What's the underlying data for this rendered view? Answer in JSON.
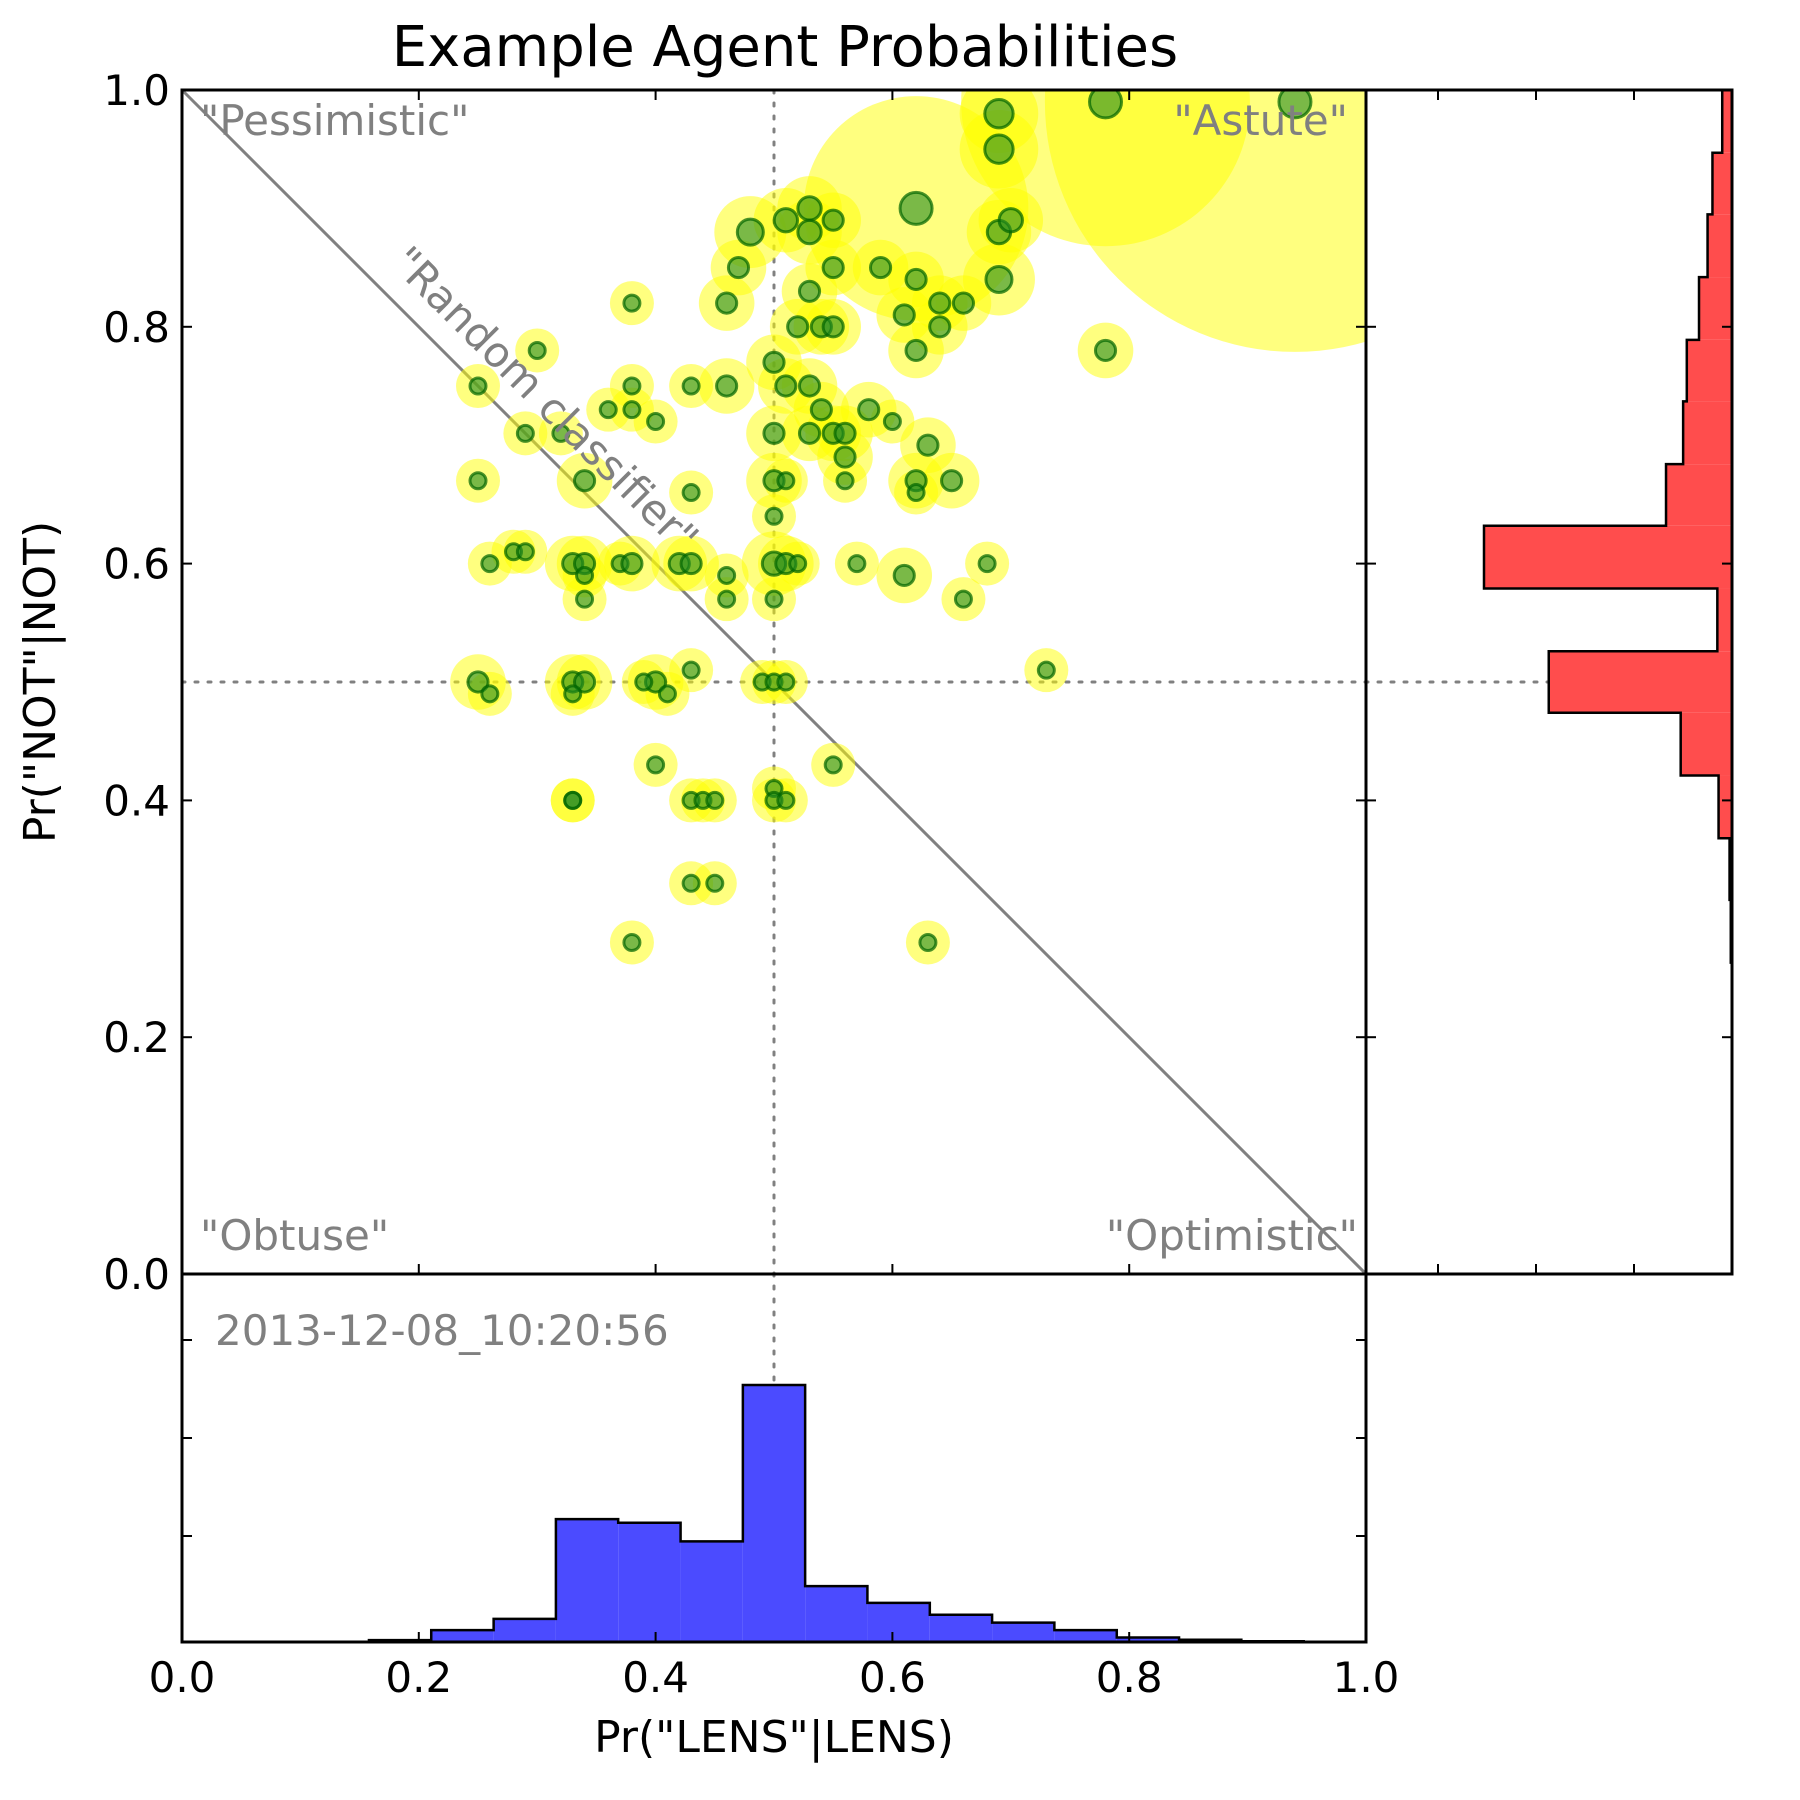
{
  "chart_data": {
    "type": "scatter",
    "title": "Example Agent Probabilities",
    "xlabel": "Pr(\"LENS\"|LENS)",
    "ylabel": "Pr(\"NOT\"|NOT)",
    "xlim": [
      0.0,
      1.0
    ],
    "ylim": [
      0.0,
      1.0
    ],
    "xticks": [
      "0.0",
      "0.2",
      "0.4",
      "0.6",
      "0.8",
      "1.0"
    ],
    "yticks": [
      "0.0",
      "0.2",
      "0.4",
      "0.6",
      "0.8",
      "1.0"
    ],
    "reference_lines": {
      "x": 0.5,
      "y": 0.5,
      "diagonal": [
        [
          0,
          1
        ],
        [
          1,
          0
        ]
      ]
    },
    "annotations": {
      "top_left": "\"Pessimistic\"",
      "top_right": "\"Astute\"",
      "bottom_left": "\"Obtuse\"",
      "bottom_right": "\"Optimistic\"",
      "diagonal": "\"Random classifier\"",
      "timestamp": "2013-12-08_10:20:56"
    },
    "colors": {
      "halo": "#ffff00",
      "point": "#228b22",
      "point_edge": "#006400",
      "x_hist": "#4b4bff",
      "y_hist": "#ff4d4d",
      "guide": "#808080"
    },
    "points": [
      {
        "x": 0.94,
        "y": 0.99,
        "n": 28
      },
      {
        "x": 0.78,
        "y": 0.99,
        "n": 14
      },
      {
        "x": 0.62,
        "y": 0.9,
        "n": 10
      },
      {
        "x": 0.69,
        "y": 0.98,
        "n": 5
      },
      {
        "x": 0.69,
        "y": 0.95,
        "n": 5
      },
      {
        "x": 0.69,
        "y": 0.88,
        "n": 3
      },
      {
        "x": 0.7,
        "y": 0.89,
        "n": 3
      },
      {
        "x": 0.69,
        "y": 0.84,
        "n": 4
      },
      {
        "x": 0.78,
        "y": 0.78,
        "n": 2
      },
      {
        "x": 0.53,
        "y": 0.9,
        "n": 3
      },
      {
        "x": 0.51,
        "y": 0.89,
        "n": 3
      },
      {
        "x": 0.53,
        "y": 0.88,
        "n": 3
      },
      {
        "x": 0.55,
        "y": 0.89,
        "n": 2
      },
      {
        "x": 0.48,
        "y": 0.88,
        "n": 4
      },
      {
        "x": 0.62,
        "y": 0.84,
        "n": 2
      },
      {
        "x": 0.59,
        "y": 0.85,
        "n": 2
      },
      {
        "x": 0.55,
        "y": 0.85,
        "n": 2
      },
      {
        "x": 0.53,
        "y": 0.83,
        "n": 2
      },
      {
        "x": 0.47,
        "y": 0.85,
        "n": 2
      },
      {
        "x": 0.46,
        "y": 0.82,
        "n": 2
      },
      {
        "x": 0.64,
        "y": 0.82,
        "n": 2
      },
      {
        "x": 0.66,
        "y": 0.82,
        "n": 2
      },
      {
        "x": 0.61,
        "y": 0.81,
        "n": 2
      },
      {
        "x": 0.64,
        "y": 0.8,
        "n": 2
      },
      {
        "x": 0.62,
        "y": 0.78,
        "n": 2
      },
      {
        "x": 0.52,
        "y": 0.8,
        "n": 2
      },
      {
        "x": 0.54,
        "y": 0.8,
        "n": 2
      },
      {
        "x": 0.55,
        "y": 0.8,
        "n": 2
      },
      {
        "x": 0.5,
        "y": 0.77,
        "n": 2
      },
      {
        "x": 0.51,
        "y": 0.75,
        "n": 2
      },
      {
        "x": 0.53,
        "y": 0.75,
        "n": 2
      },
      {
        "x": 0.46,
        "y": 0.75,
        "n": 2
      },
      {
        "x": 0.43,
        "y": 0.75,
        "n": 1
      },
      {
        "x": 0.38,
        "y": 0.82,
        "n": 1
      },
      {
        "x": 0.3,
        "y": 0.78,
        "n": 1
      },
      {
        "x": 0.25,
        "y": 0.75,
        "n": 1
      },
      {
        "x": 0.38,
        "y": 0.75,
        "n": 1
      },
      {
        "x": 0.36,
        "y": 0.73,
        "n": 1
      },
      {
        "x": 0.38,
        "y": 0.73,
        "n": 1
      },
      {
        "x": 0.4,
        "y": 0.72,
        "n": 1
      },
      {
        "x": 0.29,
        "y": 0.71,
        "n": 1
      },
      {
        "x": 0.32,
        "y": 0.71,
        "n": 1
      },
      {
        "x": 0.54,
        "y": 0.73,
        "n": 2
      },
      {
        "x": 0.58,
        "y": 0.73,
        "n": 2
      },
      {
        "x": 0.6,
        "y": 0.72,
        "n": 1
      },
      {
        "x": 0.5,
        "y": 0.71,
        "n": 2
      },
      {
        "x": 0.53,
        "y": 0.71,
        "n": 2
      },
      {
        "x": 0.55,
        "y": 0.71,
        "n": 2
      },
      {
        "x": 0.56,
        "y": 0.71,
        "n": 2
      },
      {
        "x": 0.56,
        "y": 0.69,
        "n": 2
      },
      {
        "x": 0.63,
        "y": 0.7,
        "n": 2
      },
      {
        "x": 0.65,
        "y": 0.67,
        "n": 2
      },
      {
        "x": 0.62,
        "y": 0.67,
        "n": 2
      },
      {
        "x": 0.62,
        "y": 0.66,
        "n": 1
      },
      {
        "x": 0.5,
        "y": 0.67,
        "n": 2
      },
      {
        "x": 0.51,
        "y": 0.67,
        "n": 1
      },
      {
        "x": 0.56,
        "y": 0.67,
        "n": 1
      },
      {
        "x": 0.34,
        "y": 0.67,
        "n": 2
      },
      {
        "x": 0.25,
        "y": 0.67,
        "n": 1
      },
      {
        "x": 0.43,
        "y": 0.66,
        "n": 1
      },
      {
        "x": 0.5,
        "y": 0.64,
        "n": 1
      },
      {
        "x": 0.33,
        "y": 0.6,
        "n": 2
      },
      {
        "x": 0.34,
        "y": 0.6,
        "n": 2
      },
      {
        "x": 0.34,
        "y": 0.59,
        "n": 1
      },
      {
        "x": 0.28,
        "y": 0.61,
        "n": 1
      },
      {
        "x": 0.29,
        "y": 0.61,
        "n": 1
      },
      {
        "x": 0.26,
        "y": 0.6,
        "n": 1
      },
      {
        "x": 0.37,
        "y": 0.6,
        "n": 1
      },
      {
        "x": 0.38,
        "y": 0.6,
        "n": 2
      },
      {
        "x": 0.42,
        "y": 0.6,
        "n": 2
      },
      {
        "x": 0.43,
        "y": 0.6,
        "n": 2
      },
      {
        "x": 0.46,
        "y": 0.59,
        "n": 1
      },
      {
        "x": 0.5,
        "y": 0.6,
        "n": 3
      },
      {
        "x": 0.51,
        "y": 0.6,
        "n": 2
      },
      {
        "x": 0.52,
        "y": 0.6,
        "n": 1
      },
      {
        "x": 0.57,
        "y": 0.6,
        "n": 1
      },
      {
        "x": 0.61,
        "y": 0.59,
        "n": 2
      },
      {
        "x": 0.68,
        "y": 0.6,
        "n": 1
      },
      {
        "x": 0.66,
        "y": 0.57,
        "n": 1
      },
      {
        "x": 0.34,
        "y": 0.57,
        "n": 1
      },
      {
        "x": 0.46,
        "y": 0.57,
        "n": 1
      },
      {
        "x": 0.5,
        "y": 0.57,
        "n": 1
      },
      {
        "x": 0.25,
        "y": 0.5,
        "n": 2
      },
      {
        "x": 0.26,
        "y": 0.49,
        "n": 1
      },
      {
        "x": 0.33,
        "y": 0.5,
        "n": 2
      },
      {
        "x": 0.34,
        "y": 0.5,
        "n": 2
      },
      {
        "x": 0.33,
        "y": 0.49,
        "n": 1
      },
      {
        "x": 0.4,
        "y": 0.5,
        "n": 2
      },
      {
        "x": 0.39,
        "y": 0.5,
        "n": 1
      },
      {
        "x": 0.41,
        "y": 0.49,
        "n": 1
      },
      {
        "x": 0.43,
        "y": 0.51,
        "n": 1
      },
      {
        "x": 0.49,
        "y": 0.5,
        "n": 1
      },
      {
        "x": 0.5,
        "y": 0.5,
        "n": 1
      },
      {
        "x": 0.51,
        "y": 0.5,
        "n": 1
      },
      {
        "x": 0.73,
        "y": 0.51,
        "n": 1
      },
      {
        "x": 0.4,
        "y": 0.43,
        "n": 1
      },
      {
        "x": 0.55,
        "y": 0.43,
        "n": 1
      },
      {
        "x": 0.33,
        "y": 0.4,
        "n": 1
      },
      {
        "x": 0.33,
        "y": 0.4,
        "n": 1
      },
      {
        "x": 0.43,
        "y": 0.4,
        "n": 1
      },
      {
        "x": 0.44,
        "y": 0.4,
        "n": 1
      },
      {
        "x": 0.45,
        "y": 0.4,
        "n": 1
      },
      {
        "x": 0.5,
        "y": 0.41,
        "n": 1
      },
      {
        "x": 0.5,
        "y": 0.4,
        "n": 1
      },
      {
        "x": 0.51,
        "y": 0.4,
        "n": 1
      },
      {
        "x": 0.43,
        "y": 0.33,
        "n": 1
      },
      {
        "x": 0.45,
        "y": 0.33,
        "n": 1
      },
      {
        "x": 0.38,
        "y": 0.28,
        "n": 1
      },
      {
        "x": 0.63,
        "y": 0.28,
        "n": 1
      }
    ],
    "x_histogram": {
      "bins": [
        0.1579,
        0.2105,
        0.2632,
        0.3158,
        0.3684,
        0.4211,
        0.4737,
        0.5263,
        0.5789,
        0.6316,
        0.6842,
        0.7368,
        0.7895,
        0.8421,
        0.8947,
        0.9474
      ],
      "counts": [
        0.5,
        3.2,
        6.2,
        33,
        32,
        27,
        69,
        15,
        10.5,
        7.3,
        5.2,
        3.2,
        1.2,
        0.6,
        0.2
      ]
    },
    "y_histogram": {
      "bins": [
        0.263,
        0.316,
        0.368,
        0.421,
        0.474,
        0.526,
        0.579,
        0.632,
        0.684,
        0.737,
        0.789,
        0.842,
        0.895,
        0.947,
        1.0
      ],
      "counts": [
        1,
        2,
        11,
        42,
        150,
        12,
        203,
        54,
        40,
        37,
        27,
        20,
        16,
        8
      ]
    }
  }
}
